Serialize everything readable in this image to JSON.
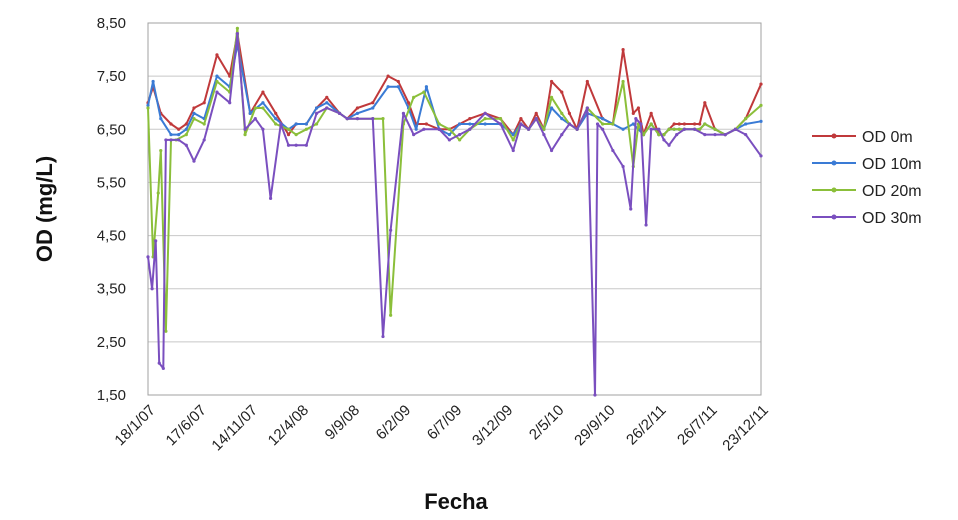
{
  "chart_data": {
    "type": "line",
    "title": "",
    "xlabel": "Fecha",
    "ylabel": "OD (mg/L)",
    "ylim": [
      1.5,
      8.5
    ],
    "y_ticks": [
      "8,50",
      "7,50",
      "6,50",
      "5,50",
      "4,50",
      "3,50",
      "2,50",
      "1,50"
    ],
    "x_ticks": [
      "18/1/07",
      "17/6/07",
      "14/11/07",
      "12/4/08",
      "9/9/08",
      "6/2/09",
      "6/7/09",
      "3/12/09",
      "2/5/10",
      "29/9/10",
      "26/2/11",
      "26/7/11",
      "23/12/11"
    ],
    "grid": "horizontal",
    "legend_position": "right",
    "colors": {
      "OD 0m": "#c0393b",
      "OD 10m": "#3a7bd5",
      "OD 20m": "#8bbf3a",
      "OD 30m": "#7a4fbf"
    },
    "series": [
      {
        "name": "OD 0m",
        "x": [
          0,
          0.1,
          0.25,
          0.45,
          0.6,
          0.75,
          0.9,
          1.1,
          1.35,
          1.6,
          1.75,
          2.0,
          2.25,
          2.5,
          2.75,
          2.9,
          3.1,
          3.3,
          3.5,
          3.75,
          3.9,
          4.1,
          4.4,
          4.7,
          4.9,
          5.1,
          5.25,
          5.45,
          5.7,
          5.9,
          6.1,
          6.3,
          6.6,
          6.9,
          7.15,
          7.3,
          7.45,
          7.6,
          7.75,
          7.9,
          8.1,
          8.25,
          8.4,
          8.6,
          8.9,
          9.1,
          9.3,
          9.5,
          9.6,
          9.7,
          9.85,
          10.0,
          10.1,
          10.2,
          10.3,
          10.4,
          10.5,
          10.7,
          10.8,
          10.9,
          11.1,
          11.3,
          11.5,
          11.7,
          12.0
        ],
        "y": [
          7.0,
          7.3,
          6.8,
          6.6,
          6.5,
          6.6,
          6.9,
          7.0,
          7.9,
          7.5,
          8.3,
          6.8,
          7.2,
          6.8,
          6.4,
          6.6,
          6.6,
          6.9,
          7.1,
          6.8,
          6.7,
          6.9,
          7.0,
          7.5,
          7.4,
          7.0,
          6.6,
          6.6,
          6.5,
          6.5,
          6.6,
          6.7,
          6.8,
          6.7,
          6.4,
          6.7,
          6.5,
          6.8,
          6.5,
          7.4,
          7.2,
          6.8,
          6.5,
          7.4,
          6.7,
          6.6,
          8.0,
          6.8,
          6.9,
          6.4,
          6.8,
          6.4,
          6.4,
          6.5,
          6.6,
          6.6,
          6.6,
          6.6,
          6.6,
          7.0,
          6.5,
          6.4,
          6.5,
          6.7,
          7.35
        ]
      },
      {
        "name": "OD 10m",
        "x": [
          0,
          0.1,
          0.25,
          0.45,
          0.6,
          0.75,
          0.9,
          1.1,
          1.35,
          1.6,
          1.75,
          2.0,
          2.25,
          2.5,
          2.75,
          2.9,
          3.1,
          3.3,
          3.5,
          3.75,
          3.9,
          4.1,
          4.4,
          4.7,
          4.9,
          5.1,
          5.25,
          5.45,
          5.7,
          5.9,
          6.1,
          6.3,
          6.6,
          6.9,
          7.15,
          7.3,
          7.45,
          7.6,
          7.75,
          7.9,
          8.1,
          8.25,
          8.4,
          8.6,
          8.9,
          9.1,
          9.3,
          9.5,
          9.6,
          9.7,
          9.85,
          10.0,
          10.1,
          10.2,
          10.3,
          10.4,
          10.5,
          10.7,
          10.8,
          10.9,
          11.1,
          11.3,
          11.5,
          11.7,
          12.0
        ],
        "y": [
          6.95,
          7.4,
          6.7,
          6.4,
          6.4,
          6.5,
          6.8,
          6.7,
          7.5,
          7.3,
          8.1,
          6.8,
          7.0,
          6.7,
          6.5,
          6.6,
          6.6,
          6.9,
          7.0,
          6.8,
          6.7,
          6.8,
          6.9,
          7.3,
          7.3,
          6.9,
          6.5,
          7.3,
          6.5,
          6.4,
          6.6,
          6.6,
          6.6,
          6.6,
          6.4,
          6.6,
          6.5,
          6.7,
          6.5,
          6.9,
          6.7,
          6.6,
          6.5,
          6.8,
          6.7,
          6.6,
          6.5,
          6.6,
          6.5,
          6.4,
          6.6,
          6.4,
          6.4,
          6.5,
          6.5,
          6.5,
          6.5,
          6.5,
          6.5,
          6.6,
          6.5,
          6.4,
          6.5,
          6.6,
          6.65
        ]
      },
      {
        "name": "OD 20m",
        "x": [
          0,
          0.1,
          0.2,
          0.25,
          0.35,
          0.45,
          0.55,
          0.75,
          0.9,
          1.1,
          1.35,
          1.6,
          1.75,
          1.9,
          2.1,
          2.25,
          2.5,
          2.75,
          2.9,
          3.1,
          3.3,
          3.5,
          3.75,
          3.9,
          4.1,
          4.4,
          4.6,
          4.75,
          5.0,
          5.2,
          5.4,
          5.7,
          5.9,
          6.1,
          6.3,
          6.6,
          6.9,
          7.15,
          7.3,
          7.45,
          7.6,
          7.75,
          7.9,
          8.1,
          8.25,
          8.4,
          8.6,
          8.9,
          9.1,
          9.3,
          9.5,
          9.6,
          9.7,
          9.85,
          10.0,
          10.1,
          10.2,
          10.3,
          10.4,
          10.5,
          10.7,
          10.8,
          10.9,
          11.1,
          11.3,
          11.5,
          11.7,
          12.0
        ],
        "y": [
          6.9,
          4.1,
          5.3,
          6.1,
          2.7,
          6.3,
          6.3,
          6.4,
          6.7,
          6.6,
          7.4,
          7.2,
          8.4,
          6.4,
          6.9,
          6.9,
          6.6,
          6.5,
          6.4,
          6.5,
          6.6,
          6.9,
          6.8,
          6.7,
          6.7,
          6.7,
          6.7,
          3.0,
          6.6,
          7.1,
          7.2,
          6.6,
          6.5,
          6.3,
          6.5,
          6.7,
          6.7,
          6.3,
          6.6,
          6.5,
          6.7,
          6.5,
          7.1,
          6.8,
          6.6,
          6.5,
          6.9,
          6.6,
          6.6,
          7.4,
          5.8,
          6.6,
          6.4,
          6.6,
          6.4,
          6.4,
          6.5,
          6.5,
          6.5,
          6.5,
          6.5,
          6.5,
          6.6,
          6.5,
          6.4,
          6.5,
          6.7,
          6.95
        ]
      },
      {
        "name": "OD 30m",
        "x": [
          0,
          0.08,
          0.15,
          0.22,
          0.3,
          0.35,
          0.45,
          0.6,
          0.75,
          0.9,
          1.1,
          1.35,
          1.6,
          1.75,
          1.9,
          2.1,
          2.25,
          2.4,
          2.6,
          2.75,
          2.9,
          3.1,
          3.3,
          3.5,
          3.75,
          3.9,
          4.1,
          4.4,
          4.6,
          4.75,
          5.0,
          5.2,
          5.4,
          5.7,
          5.9,
          6.1,
          6.3,
          6.6,
          6.9,
          7.15,
          7.3,
          7.45,
          7.6,
          7.75,
          7.9,
          8.1,
          8.25,
          8.4,
          8.6,
          8.75,
          8.8,
          8.9,
          9.1,
          9.3,
          9.45,
          9.55,
          9.65,
          9.75,
          9.85,
          10.0,
          10.1,
          10.2,
          10.35,
          10.5,
          10.7,
          10.9,
          11.1,
          11.3,
          11.5,
          11.7,
          12.0
        ],
        "y": [
          4.1,
          3.5,
          4.4,
          2.1,
          2.0,
          6.3,
          6.3,
          6.3,
          6.2,
          5.9,
          6.3,
          7.2,
          7.0,
          8.3,
          6.5,
          6.7,
          6.5,
          5.2,
          6.6,
          6.2,
          6.2,
          6.2,
          6.8,
          6.9,
          6.8,
          6.7,
          6.7,
          6.7,
          2.6,
          4.6,
          6.8,
          6.4,
          6.5,
          6.5,
          6.3,
          6.4,
          6.5,
          6.8,
          6.6,
          6.1,
          6.6,
          6.5,
          6.7,
          6.4,
          6.1,
          6.4,
          6.6,
          6.5,
          6.9,
          1.5,
          6.6,
          6.5,
          6.1,
          5.8,
          5.0,
          6.7,
          6.6,
          4.7,
          6.5,
          6.5,
          6.3,
          6.2,
          6.4,
          6.5,
          6.5,
          6.4,
          6.4,
          6.4,
          6.5,
          6.4,
          6.0
        ]
      }
    ]
  }
}
